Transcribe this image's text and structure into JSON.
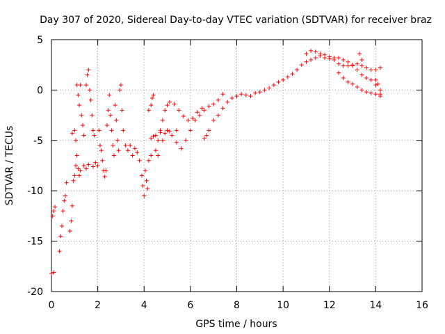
{
  "chart_data": {
    "type": "scatter",
    "title": "Day 307 of 2020, Sidereal Day-to-day VTEC variation (SDTVAR) for receiver braz",
    "xlabel": "GPS time / hours",
    "ylabel": "SDTVAR / TECUs",
    "xlim": [
      0,
      16
    ],
    "ylim": [
      -20,
      5
    ],
    "x_ticks": [
      0,
      2,
      4,
      6,
      8,
      10,
      12,
      14,
      16
    ],
    "y_ticks": [
      -20,
      -15,
      -10,
      -5,
      0,
      5
    ],
    "grid": true,
    "marker": "+",
    "color": "#ff0000",
    "series": [
      {
        "name": "braz",
        "points": [
          [
            0.0,
            -18.2
          ],
          [
            0.1,
            -18.1
          ],
          [
            0.05,
            -12.5
          ],
          [
            0.1,
            -12.0
          ],
          [
            0.15,
            -11.6
          ],
          [
            0.35,
            -16.0
          ],
          [
            0.4,
            -14.5
          ],
          [
            0.45,
            -13.5
          ],
          [
            0.5,
            -12.0
          ],
          [
            0.55,
            -11.0
          ],
          [
            0.6,
            -10.5
          ],
          [
            0.65,
            -9.2
          ],
          [
            0.8,
            -14.0
          ],
          [
            0.85,
            -13.0
          ],
          [
            0.9,
            -11.5
          ],
          [
            0.95,
            -9.0
          ],
          [
            1.0,
            -8.5
          ],
          [
            1.05,
            -7.5
          ],
          [
            0.9,
            -4.3
          ],
          [
            1.0,
            -4.0
          ],
          [
            1.05,
            -5.0
          ],
          [
            1.1,
            -6.5
          ],
          [
            1.15,
            -7.8
          ],
          [
            1.2,
            -8.5
          ],
          [
            1.25,
            -8.0
          ],
          [
            1.1,
            0.5
          ],
          [
            1.15,
            -0.5
          ],
          [
            1.2,
            -1.5
          ],
          [
            1.25,
            0.5
          ],
          [
            1.3,
            -2.5
          ],
          [
            1.35,
            -3.5
          ],
          [
            1.4,
            -4.5
          ],
          [
            1.5,
            0.5
          ],
          [
            1.55,
            1.5
          ],
          [
            1.6,
            2.0
          ],
          [
            1.65,
            0.0
          ],
          [
            1.7,
            -1.0
          ],
          [
            1.75,
            -2.5
          ],
          [
            1.8,
            -4.0
          ],
          [
            1.85,
            -4.5
          ],
          [
            1.4,
            -7.5
          ],
          [
            1.5,
            -7.8
          ],
          [
            1.6,
            -7.4
          ],
          [
            1.8,
            -7.6
          ],
          [
            1.9,
            -7.2
          ],
          [
            2.0,
            -7.5
          ],
          [
            2.05,
            -4.0
          ],
          [
            2.1,
            -5.5
          ],
          [
            2.15,
            -6.0
          ],
          [
            2.2,
            -7.0
          ],
          [
            2.25,
            -8.0
          ],
          [
            2.3,
            -8.6
          ],
          [
            2.35,
            -8.0
          ],
          [
            2.4,
            -3.5
          ],
          [
            2.45,
            -2.0
          ],
          [
            2.5,
            -0.5
          ],
          [
            2.55,
            -2.5
          ],
          [
            2.6,
            -4.0
          ],
          [
            2.65,
            -5.5
          ],
          [
            2.7,
            -6.5
          ],
          [
            2.75,
            -1.5
          ],
          [
            2.8,
            -3.0
          ],
          [
            2.85,
            -5.0
          ],
          [
            2.9,
            -6.0
          ],
          [
            2.95,
            0.0
          ],
          [
            3.0,
            0.5
          ],
          [
            3.05,
            -2.0
          ],
          [
            3.1,
            -4.0
          ],
          [
            3.2,
            -5.5
          ],
          [
            3.3,
            -6.0
          ],
          [
            3.4,
            -5.5
          ],
          [
            3.5,
            -6.5
          ],
          [
            3.6,
            -5.8
          ],
          [
            3.7,
            -6.2
          ],
          [
            3.8,
            -7.0
          ],
          [
            3.9,
            -8.5
          ],
          [
            3.95,
            -9.5
          ],
          [
            4.0,
            -10.5
          ],
          [
            4.05,
            -8.0
          ],
          [
            4.1,
            -9.0
          ],
          [
            4.15,
            -9.8
          ],
          [
            4.2,
            -7.0
          ],
          [
            4.3,
            -6.5
          ],
          [
            4.2,
            -2.0
          ],
          [
            4.3,
            -1.5
          ],
          [
            4.35,
            -0.8
          ],
          [
            4.4,
            -0.5
          ],
          [
            4.3,
            -4.8
          ],
          [
            4.4,
            -4.6
          ],
          [
            4.5,
            -4.5
          ],
          [
            4.7,
            -4.2
          ],
          [
            4.9,
            -4.3
          ],
          [
            5.1,
            -4.1
          ],
          [
            5.4,
            -4.0
          ],
          [
            4.5,
            -6.0
          ],
          [
            4.6,
            -5.0
          ],
          [
            4.7,
            -4.0
          ],
          [
            4.8,
            -3.0
          ],
          [
            4.9,
            -2.0
          ],
          [
            5.0,
            -1.5
          ],
          [
            5.1,
            -1.2
          ],
          [
            5.3,
            -1.4
          ],
          [
            5.5,
            -2.0
          ],
          [
            5.7,
            -2.6
          ],
          [
            5.9,
            -3.0
          ],
          [
            6.1,
            -2.8
          ],
          [
            6.3,
            -2.2
          ],
          [
            6.5,
            -1.8
          ],
          [
            4.6,
            -6.5
          ],
          [
            4.8,
            -5.0
          ],
          [
            5.0,
            -4.0
          ],
          [
            5.2,
            -4.5
          ],
          [
            5.4,
            -5.2
          ],
          [
            5.6,
            -5.8
          ],
          [
            5.8,
            -5.0
          ],
          [
            6.0,
            -4.0
          ],
          [
            6.2,
            -3.0
          ],
          [
            6.4,
            -2.5
          ],
          [
            6.6,
            -2.0
          ],
          [
            6.8,
            -1.6
          ],
          [
            7.0,
            -1.4
          ],
          [
            7.2,
            -1.0
          ],
          [
            7.4,
            -0.4
          ],
          [
            6.6,
            -4.8
          ],
          [
            6.7,
            -4.5
          ],
          [
            6.8,
            -4.0
          ],
          [
            7.0,
            -3.0
          ],
          [
            7.2,
            -2.5
          ],
          [
            7.4,
            -1.8
          ],
          [
            7.6,
            -1.2
          ],
          [
            7.8,
            -0.8
          ],
          [
            8.0,
            -0.6
          ],
          [
            8.2,
            -0.4
          ],
          [
            8.4,
            -0.5
          ],
          [
            8.6,
            -0.6
          ],
          [
            8.8,
            -0.3
          ],
          [
            9.0,
            -0.2
          ],
          [
            9.2,
            0.0
          ],
          [
            9.4,
            0.2
          ],
          [
            9.6,
            0.5
          ],
          [
            9.8,
            0.8
          ],
          [
            10.0,
            1.0
          ],
          [
            10.2,
            1.3
          ],
          [
            10.4,
            1.6
          ],
          [
            10.6,
            2.0
          ],
          [
            10.8,
            2.5
          ],
          [
            11.0,
            2.8
          ],
          [
            11.2,
            3.0
          ],
          [
            11.4,
            3.2
          ],
          [
            11.6,
            3.4
          ],
          [
            11.8,
            3.2
          ],
          [
            12.0,
            3.1
          ],
          [
            12.2,
            3.0
          ],
          [
            12.4,
            2.6
          ],
          [
            12.6,
            2.4
          ],
          [
            12.8,
            2.4
          ],
          [
            13.0,
            2.5
          ],
          [
            13.2,
            2.6
          ],
          [
            13.4,
            2.4
          ],
          [
            13.6,
            2.2
          ],
          [
            13.8,
            2.0
          ],
          [
            14.0,
            2.0
          ],
          [
            14.2,
            2.2
          ],
          [
            11.0,
            3.6
          ],
          [
            11.2,
            3.9
          ],
          [
            11.4,
            3.8
          ],
          [
            11.6,
            3.6
          ],
          [
            11.8,
            3.5
          ],
          [
            12.0,
            3.3
          ],
          [
            12.2,
            3.2
          ],
          [
            12.4,
            3.2
          ],
          [
            12.6,
            3.0
          ],
          [
            12.8,
            2.8
          ],
          [
            13.0,
            2.4
          ],
          [
            13.2,
            2.0
          ],
          [
            13.4,
            1.5
          ],
          [
            13.6,
            1.2
          ],
          [
            13.8,
            1.0
          ],
          [
            14.0,
            0.5
          ],
          [
            14.2,
            0.0
          ],
          [
            14.2,
            -0.4
          ],
          [
            12.4,
            1.7
          ],
          [
            12.6,
            1.2
          ],
          [
            12.8,
            0.8
          ],
          [
            13.0,
            0.6
          ],
          [
            13.2,
            0.3
          ],
          [
            13.4,
            0.0
          ],
          [
            13.6,
            -0.2
          ],
          [
            13.8,
            -0.3
          ],
          [
            14.0,
            -0.4
          ],
          [
            14.2,
            -0.6
          ],
          [
            13.3,
            3.6
          ],
          [
            13.4,
            3.0
          ],
          [
            14.0,
            1.0
          ],
          [
            14.1,
            0.6
          ]
        ]
      }
    ]
  }
}
